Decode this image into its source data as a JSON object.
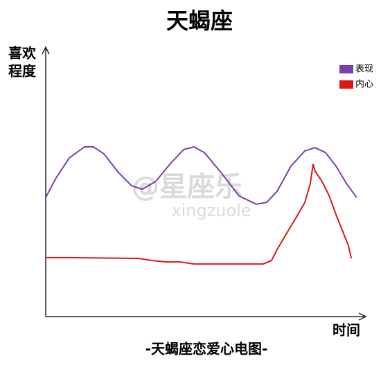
{
  "chart_data": {
    "type": "line",
    "title": "天蝎座",
    "subtitle": "-天蝎座恋爱心电图-",
    "y_label": [
      "喜欢",
      "程度"
    ],
    "x_label": "时间",
    "watermark": [
      "@星座乐",
      "xingzuole"
    ],
    "xlim": [
      0,
      100
    ],
    "ylim": [
      0,
      100
    ],
    "legend": "top-right",
    "series": [
      {
        "name": "表现",
        "color": "#7a3fa8",
        "x": [
          0,
          3.1,
          7.4,
          12.2,
          15.0,
          18.3,
          22.7,
          27.0,
          30.3,
          34.6,
          39.0,
          43.4,
          46.6,
          49.9,
          55.3,
          60.8,
          66.2,
          69.5,
          72.8,
          77.1,
          81.5,
          84.7,
          88.0,
          91.3,
          94.6,
          97.8
        ],
        "values": [
          44.4,
          51.4,
          59.2,
          63.3,
          63.3,
          60.7,
          54.0,
          48.8,
          47.5,
          50.4,
          56.8,
          62.3,
          63.3,
          61.2,
          53.5,
          45.0,
          41.9,
          42.6,
          46.8,
          56.1,
          61.8,
          63.0,
          61.2,
          56.1,
          49.6,
          44.4
        ]
      },
      {
        "name": "内心",
        "color": "#d81818",
        "x": [
          0,
          7.4,
          29.2,
          33.6,
          37.9,
          42.3,
          46.6,
          68.4,
          71.0,
          72.8,
          76.0,
          79.3,
          81.5,
          83.2,
          84.1,
          84.7,
          86.9,
          89.1,
          91.3,
          93.5,
          95.2,
          96.1
        ],
        "values": [
          22.0,
          22.0,
          21.7,
          20.9,
          20.4,
          20.4,
          19.6,
          19.6,
          20.9,
          25.1,
          31.5,
          38.0,
          42.6,
          49.6,
          56.8,
          54.3,
          50.4,
          45.2,
          38.0,
          31.5,
          26.4,
          21.7
        ]
      }
    ]
  }
}
